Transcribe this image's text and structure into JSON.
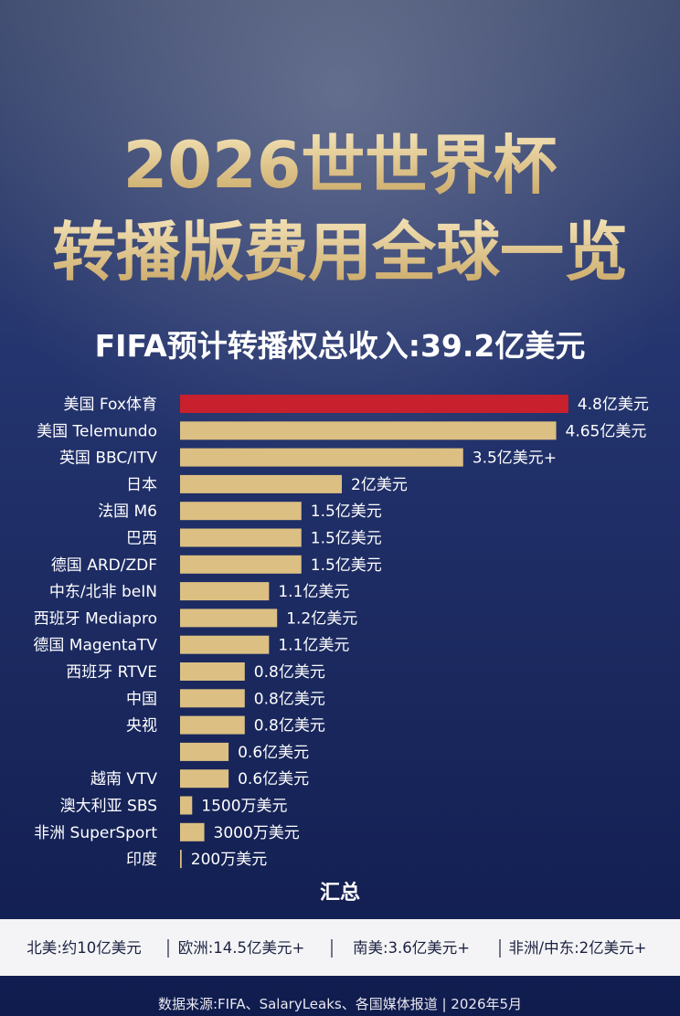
{
  "chart_data": {
    "type": "bar",
    "title": [
      "2026世世界杯",
      "转播版费用全球一览"
    ],
    "subtitle": "FIFA预计转播权总收入:39.2亿美元",
    "categories": [
      "美国 Fox体育",
      "美国 Telemundo",
      "英国 BBC/ITV",
      "日本",
      "法国 M6",
      "巴西",
      "德国 ARD/ZDF",
      "中东/北非 beIN",
      "西班牙 Mediapro",
      "德国 MagentaTV",
      "西班牙 RTVE",
      "中国",
      "央视",
      null,
      "越南 VTV",
      "澳大利亚 SBS",
      "非洲 SuperSport",
      "印度"
    ],
    "values": [
      4.8,
      4.65,
      3.5,
      2,
      1.5,
      1.5,
      1.5,
      1.1,
      1.2,
      1.1,
      0.8,
      0.8,
      0.8,
      0.6,
      0.6,
      0.15,
      0.3,
      0.02
    ],
    "value_labels": [
      "4.8亿美元",
      "4.65亿美元",
      "3.5亿美元+",
      "2亿美元",
      "1.5亿美元",
      "1.5亿美元",
      "1.5亿美元",
      "1.1亿美元",
      "1.2亿美元",
      "1.1亿美元",
      "0.8亿美元",
      "0.8亿美元",
      "0.8亿美元",
      "0.6亿美元",
      "0.6亿美元",
      "1500万美元",
      "3000万美元",
      "200万美元"
    ],
    "colors": [
      "#c8202c",
      "#dcbf82",
      "#dcbf82",
      "#dcbf82",
      "#dcbf82",
      "#dcbf82",
      "#dcbf82",
      "#dcbf82",
      "#dcbf82",
      "#dcbf82",
      "#dcbf82",
      "#dcbf82",
      "#dcbf82",
      "#dcbf82",
      "#dcbf82",
      "#dcbf82",
      "#dcbf82",
      "#dcbf82"
    ],
    "summary_title": "汇总",
    "summary": [
      "北美:约10亿美元",
      "欧洲:14.5亿美元+",
      "南美:3.6亿美元+",
      "非洲/中东:2亿美元+"
    ],
    "source": "数据来源:FIFA、SalaryLeaks、各国媒体报道 | 2026年5月"
  }
}
